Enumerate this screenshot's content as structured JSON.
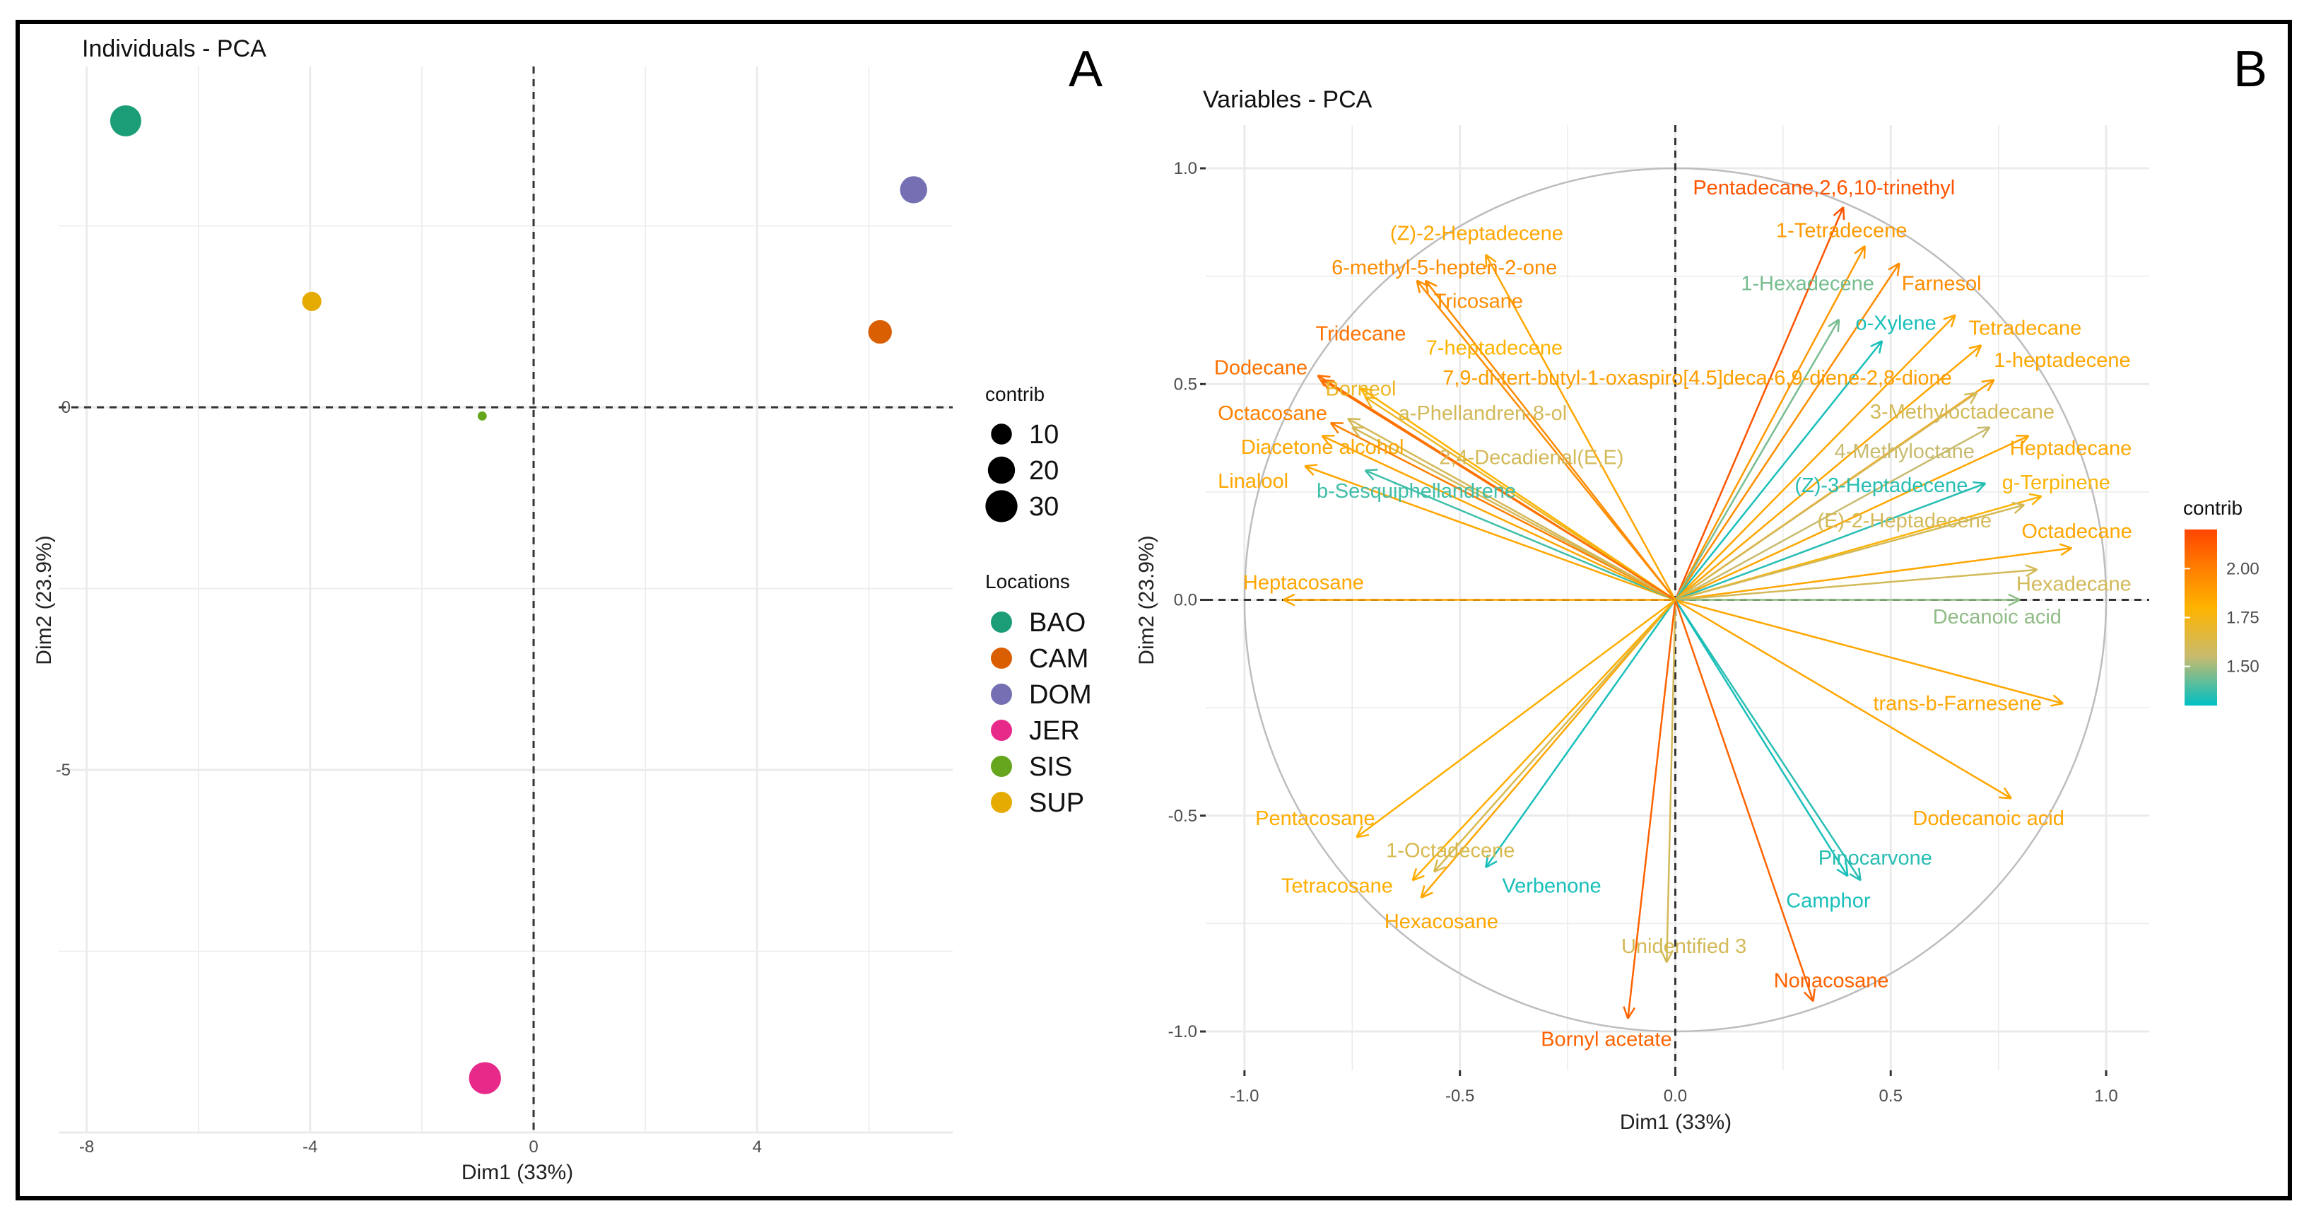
{
  "panel_labels": {
    "a": "A",
    "b": "B"
  },
  "chart_data": [
    {
      "type": "scatter",
      "title": "Individuals - PCA",
      "xlabel": "Dim1 (33%)",
      "ylabel": "Dim2 (23.9%)",
      "xlim": [
        -8.5,
        7.5
      ],
      "ylim": [
        -10,
        4.7
      ],
      "xticks": [
        {
          "v": -8,
          "t": "-8"
        },
        {
          "v": -4,
          "t": "-4"
        },
        {
          "v": 0,
          "t": "0"
        },
        {
          "v": 4,
          "t": "4"
        }
      ],
      "yticks": [
        {
          "v": -5,
          "t": "-5"
        },
        {
          "v": 0,
          "t": "0"
        }
      ],
      "grid": true,
      "size_legend": {
        "title": "contrib",
        "items": [
          {
            "v": 10,
            "t": "10"
          },
          {
            "v": 20,
            "t": "20"
          },
          {
            "v": 30,
            "t": "30"
          }
        ]
      },
      "color_legend": {
        "title": "Locations",
        "items": [
          {
            "name": "BAO",
            "color": "#1B9E77"
          },
          {
            "name": "CAM",
            "color": "#D95F02"
          },
          {
            "name": "DOM",
            "color": "#7570B3"
          },
          {
            "name": "JER",
            "color": "#E7298A"
          },
          {
            "name": "SIS",
            "color": "#66A61E"
          },
          {
            "name": "SUP",
            "color": "#E6AB02"
          }
        ]
      },
      "points": [
        {
          "label": "BAO",
          "x": -7.3,
          "y": 3.95,
          "contrib": 28
        },
        {
          "label": "DOM",
          "x": 6.8,
          "y": 3.0,
          "contrib": 20
        },
        {
          "label": "SUP",
          "x": -3.97,
          "y": 1.46,
          "contrib": 8
        },
        {
          "label": "CAM",
          "x": 6.2,
          "y": 1.04,
          "contrib": 14
        },
        {
          "label": "SIS",
          "x": -0.92,
          "y": -0.12,
          "contrib": 0.5
        },
        {
          "label": "JER",
          "x": -0.87,
          "y": -9.25,
          "contrib": 30
        }
      ]
    },
    {
      "type": "scatter",
      "title": "Variables - PCA",
      "xlabel": "Dim1 (33%)",
      "ylabel": "Dim2 (23.9%)",
      "xlim": [
        -1.09,
        1.1
      ],
      "ylim": [
        -1.09,
        1.1
      ],
      "xticks": [
        {
          "v": -1,
          "t": "-1.0"
        },
        {
          "v": -0.5,
          "t": "-0.5"
        },
        {
          "v": 0,
          "t": "0.0"
        },
        {
          "v": 0.5,
          "t": "0.5"
        },
        {
          "v": 1,
          "t": "1.0"
        }
      ],
      "yticks": [
        {
          "v": -1,
          "t": "-1.0"
        },
        {
          "v": -0.5,
          "t": "-0.5"
        },
        {
          "v": 0,
          "t": "0.0"
        },
        {
          "v": 0.5,
          "t": "0.5"
        },
        {
          "v": 1,
          "t": "1.0"
        }
      ],
      "grid": true,
      "colorbar": {
        "title": "contrib",
        "range": [
          1.3,
          2.2
        ],
        "ticks": [
          {
            "v": 1.5,
            "t": "1.50"
          },
          {
            "v": 1.75,
            "t": "1.75"
          },
          {
            "v": 2.0,
            "t": "2.00"
          }
        ]
      },
      "variables": [
        {
          "name": "Pentadecane,2,6,10-trinethyl",
          "x": 0.39,
          "y": 0.91,
          "contrib": 2.15
        },
        {
          "name": "1-Tetradecene",
          "x": 0.44,
          "y": 0.82,
          "contrib": 1.9
        },
        {
          "name": "Farnesol",
          "x": 0.52,
          "y": 0.78,
          "contrib": 1.95
        },
        {
          "name": "1-Hexadecene",
          "x": 0.38,
          "y": 0.65,
          "contrib": 1.45
        },
        {
          "name": "o-Xylene",
          "x": 0.48,
          "y": 0.6,
          "contrib": 1.33
        },
        {
          "name": "Tetradecane",
          "x": 0.65,
          "y": 0.66,
          "contrib": 1.85
        },
        {
          "name": "1-heptadecene",
          "x": 0.71,
          "y": 0.59,
          "contrib": 1.85
        },
        {
          "name": "7,9-di-tert-butyl-1-oxaspiro[4.5]deca-6,9-diene-2,8-dione",
          "x": 0.74,
          "y": 0.51,
          "contrib": 1.88
        },
        {
          "name": "3-Methyloctadecane",
          "x": 0.7,
          "y": 0.48,
          "contrib": 1.6
        },
        {
          "name": "4-Methyloctane",
          "x": 0.73,
          "y": 0.4,
          "contrib": 1.55
        },
        {
          "name": "Heptadecane",
          "x": 0.82,
          "y": 0.38,
          "contrib": 1.85
        },
        {
          "name": "(Z)-3-Heptadecene",
          "x": 0.72,
          "y": 0.27,
          "contrib": 1.35
        },
        {
          "name": "g-Terpinene",
          "x": 0.85,
          "y": 0.24,
          "contrib": 1.78
        },
        {
          "name": "(E)-2-Heptadecene",
          "x": 0.81,
          "y": 0.22,
          "contrib": 1.6
        },
        {
          "name": "Octadecane",
          "x": 0.92,
          "y": 0.12,
          "contrib": 1.85
        },
        {
          "name": "Hexadecane",
          "x": 0.84,
          "y": 0.07,
          "contrib": 1.6
        },
        {
          "name": "Decanoic acid",
          "x": 0.8,
          "y": 0.0,
          "contrib": 1.48
        },
        {
          "name": "trans-b-Farnesene",
          "x": 0.9,
          "y": -0.24,
          "contrib": 1.85
        },
        {
          "name": "Dodecanoic acid",
          "x": 0.78,
          "y": -0.46,
          "contrib": 1.85
        },
        {
          "name": "Pinocarvone",
          "x": 0.43,
          "y": -0.65,
          "contrib": 1.35
        },
        {
          "name": "Camphor",
          "x": 0.4,
          "y": -0.64,
          "contrib": 1.33
        },
        {
          "name": "Nonacosane",
          "x": 0.32,
          "y": -0.93,
          "contrib": 2.1
        },
        {
          "name": "Unidentified 3",
          "x": -0.02,
          "y": -0.84,
          "contrib": 1.6
        },
        {
          "name": "Bornyl acetate",
          "x": -0.11,
          "y": -0.97,
          "contrib": 2.1
        },
        {
          "name": "Verbenone",
          "x": -0.44,
          "y": -0.62,
          "contrib": 1.33
        },
        {
          "name": "Hexacosane",
          "x": -0.59,
          "y": -0.69,
          "contrib": 1.85
        },
        {
          "name": "1-Octadecene",
          "x": -0.56,
          "y": -0.63,
          "contrib": 1.62
        },
        {
          "name": "Tetracosane",
          "x": -0.61,
          "y": -0.65,
          "contrib": 1.82
        },
        {
          "name": "Pentacosane",
          "x": -0.74,
          "y": -0.55,
          "contrib": 1.82
        },
        {
          "name": "Heptacosane",
          "x": -0.91,
          "y": 0.0,
          "contrib": 1.85
        },
        {
          "name": "Linalool",
          "x": -0.86,
          "y": 0.31,
          "contrib": 1.85
        },
        {
          "name": "b-Sesquiphellandrene",
          "x": -0.72,
          "y": 0.3,
          "contrib": 1.38
        },
        {
          "name": "Diacetone alcohol",
          "x": -0.82,
          "y": 0.38,
          "contrib": 1.85
        },
        {
          "name": "2,4-Decadienal(E,E)",
          "x": -0.76,
          "y": 0.42,
          "contrib": 1.6
        },
        {
          "name": "Octacosane",
          "x": -0.8,
          "y": 0.41,
          "contrib": 2.0
        },
        {
          "name": "a-Phellandren-8-ol",
          "x": -0.75,
          "y": 0.4,
          "contrib": 1.6
        },
        {
          "name": "Borneol",
          "x": -0.72,
          "y": 0.47,
          "contrib": 1.72
        },
        {
          "name": "7-heptadecene",
          "x": -0.73,
          "y": 0.49,
          "contrib": 1.8
        },
        {
          "name": "Dodecane",
          "x": -0.82,
          "y": 0.51,
          "contrib": 2.05
        },
        {
          "name": "Tridecane",
          "x": -0.83,
          "y": 0.52,
          "contrib": 2.05
        },
        {
          "name": "Tricosane",
          "x": -0.58,
          "y": 0.74,
          "contrib": 1.95
        },
        {
          "name": "6-methyl-5-hepten-2-one",
          "x": -0.6,
          "y": 0.74,
          "contrib": 1.95
        },
        {
          "name": "(Z)-2-Heptadecene",
          "x": -0.44,
          "y": 0.8,
          "contrib": 1.85
        }
      ]
    }
  ]
}
